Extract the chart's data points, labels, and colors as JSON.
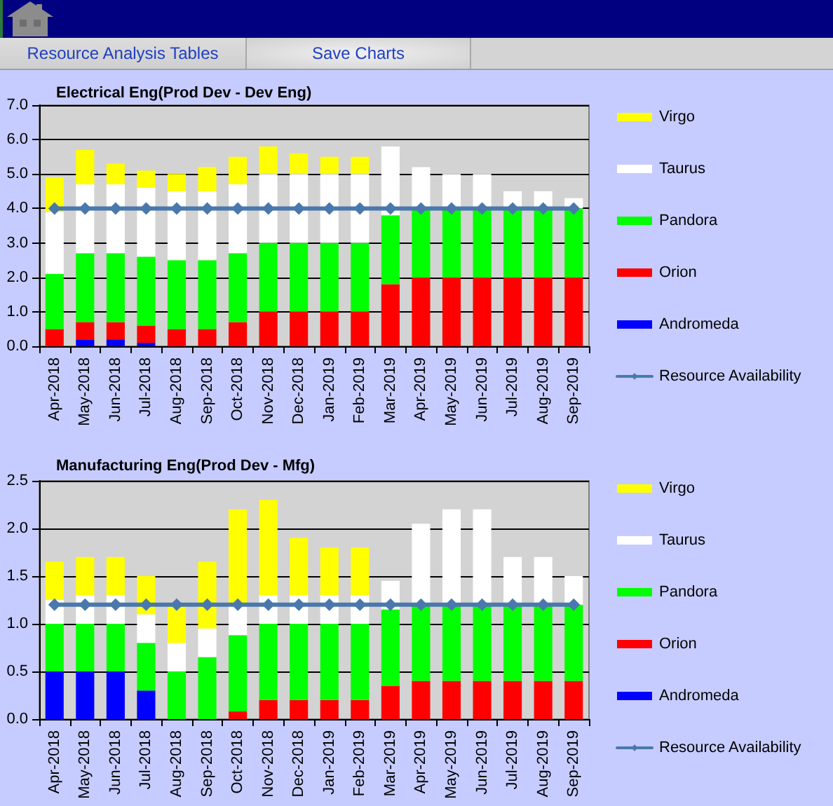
{
  "chart_data": [
    {
      "type": "bar",
      "stacked": true,
      "title": "Electrical Eng(Prod Dev - Dev Eng)",
      "annotations": [
        "Resource Analysis Tables",
        "Save Charts"
      ],
      "categories": [
        "Apr-2018",
        "May-2018",
        "Jun-2018",
        "Jul-2018",
        "Aug-2018",
        "Sep-2018",
        "Oct-2018",
        "Nov-2018",
        "Dec-2018",
        "Jan-2019",
        "Feb-2019",
        "Mar-2019",
        "Apr-2019",
        "May-2019",
        "Jun-2019",
        "Jul-2019",
        "Aug-2019",
        "Sep-2019"
      ],
      "series": [
        {
          "name": "Andromeda",
          "color": "#0000ff",
          "values": [
            null,
            0.2,
            0.2,
            0.1,
            null,
            null,
            null,
            null,
            null,
            null,
            null,
            null,
            null,
            null,
            null,
            null,
            null,
            null
          ]
        },
        {
          "name": "Orion",
          "color": "#ff0000",
          "values": [
            0.5,
            0.5,
            0.5,
            0.5,
            0.5,
            0.5,
            0.7,
            1.0,
            1.0,
            1.0,
            1.0,
            1.8,
            2.0,
            2.0,
            2.0,
            2.0,
            2.0,
            2.0
          ]
        },
        {
          "name": "Pandora",
          "color": "#00ff00",
          "values": [
            1.6,
            2.0,
            2.0,
            2.0,
            2.0,
            2.0,
            2.0,
            2.0,
            2.0,
            2.0,
            2.0,
            2.0,
            2.0,
            2.0,
            2.0,
            2.0,
            2.0,
            2.0
          ]
        },
        {
          "name": "Taurus",
          "color": "#ffffff",
          "values": [
            1.8,
            2.0,
            2.0,
            2.0,
            2.0,
            2.0,
            2.0,
            2.0,
            2.0,
            2.0,
            2.0,
            2.0,
            1.2,
            1.0,
            1.0,
            0.5,
            0.5,
            0.3
          ]
        },
        {
          "name": "Virgo",
          "color": "#ffff00",
          "values": [
            1.0,
            1.0,
            0.6,
            0.5,
            0.5,
            0.7,
            0.8,
            0.8,
            0.6,
            0.5,
            0.5,
            null,
            null,
            null,
            null,
            null,
            null,
            null
          ]
        },
        {
          "name": "Resource Availability",
          "type": "line",
          "color": "#4a78ad",
          "marker": "diamond",
          "values": [
            4.0,
            4.0,
            4.0,
            4.0,
            4.0,
            4.0,
            4.0,
            4.0,
            4.0,
            4.0,
            4.0,
            4.0,
            4.0,
            4.0,
            4.0,
            4.0,
            4.0,
            4.0
          ]
        }
      ],
      "ylim": [
        0,
        7
      ],
      "yticks": [
        {
          "value": 0,
          "label": "0.0"
        },
        {
          "value": 1,
          "label": "1.0"
        },
        {
          "value": 2,
          "label": "2.0"
        },
        {
          "value": 3,
          "label": "3.0"
        },
        {
          "value": 4,
          "label": "4.0"
        },
        {
          "value": 5,
          "label": "5.0"
        },
        {
          "value": 6,
          "label": "6.0"
        },
        {
          "value": 7,
          "label": "7.0"
        }
      ],
      "grid": "y",
      "legend": "right"
    },
    {
      "type": "bar",
      "stacked": true,
      "title": "Manufacturing Eng(Prod Dev - Mfg)",
      "categories": [
        "Apr-2018",
        "May-2018",
        "Jun-2018",
        "Jul-2018",
        "Aug-2018",
        "Sep-2018",
        "Oct-2018",
        "Nov-2018",
        "Dec-2018",
        "Jan-2019",
        "Feb-2019",
        "Mar-2019",
        "Apr-2019",
        "May-2019",
        "Jun-2019",
        "Jul-2019",
        "Aug-2019",
        "Sep-2019"
      ],
      "series": [
        {
          "name": "Andromeda",
          "color": "#0000ff",
          "values": [
            0.5,
            0.5,
            0.5,
            0.3,
            null,
            null,
            null,
            null,
            null,
            null,
            null,
            null,
            null,
            null,
            null,
            null,
            null,
            null
          ]
        },
        {
          "name": "Orion",
          "color": "#ff0000",
          "values": [
            null,
            null,
            null,
            null,
            null,
            null,
            0.08,
            0.2,
            0.2,
            0.2,
            0.2,
            0.35,
            0.4,
            0.4,
            0.4,
            0.4,
            0.4,
            0.4
          ]
        },
        {
          "name": "Pandora",
          "color": "#00ff00",
          "values": [
            0.5,
            0.5,
            0.5,
            0.5,
            0.5,
            0.65,
            0.8,
            0.8,
            0.8,
            0.8,
            0.8,
            0.8,
            0.8,
            0.8,
            0.8,
            0.8,
            0.8,
            0.8
          ]
        },
        {
          "name": "Taurus",
          "color": "#ffffff",
          "values": [
            0.25,
            0.3,
            0.3,
            0.3,
            0.3,
            0.3,
            0.32,
            0.3,
            0.3,
            0.3,
            0.3,
            0.3,
            0.85,
            1.0,
            1.0,
            0.5,
            0.5,
            0.3
          ]
        },
        {
          "name": "Virgo",
          "color": "#ffff00",
          "values": [
            0.4,
            0.4,
            0.4,
            0.4,
            0.4,
            0.7,
            1.0,
            1.0,
            0.6,
            0.5,
            0.5,
            null,
            null,
            null,
            null,
            null,
            null,
            null
          ]
        },
        {
          "name": "Resource Availability",
          "type": "line",
          "color": "#4a78ad",
          "marker": "diamond",
          "values": [
            1.2,
            1.2,
            1.2,
            1.2,
            1.2,
            1.2,
            1.2,
            1.2,
            1.2,
            1.2,
            1.2,
            1.2,
            1.2,
            1.2,
            1.2,
            1.2,
            1.2,
            1.2
          ]
        }
      ],
      "ylim": [
        0,
        2.5
      ],
      "yticks": [
        {
          "value": 0,
          "label": "0.0"
        },
        {
          "value": 0.5,
          "label": "0.5"
        },
        {
          "value": 1,
          "label": "1.0"
        },
        {
          "value": 1.5,
          "label": "1.5"
        },
        {
          "value": 2,
          "label": "2.0"
        },
        {
          "value": 2.5,
          "label": "2.5"
        }
      ],
      "grid": "y",
      "legend": "right"
    }
  ]
}
